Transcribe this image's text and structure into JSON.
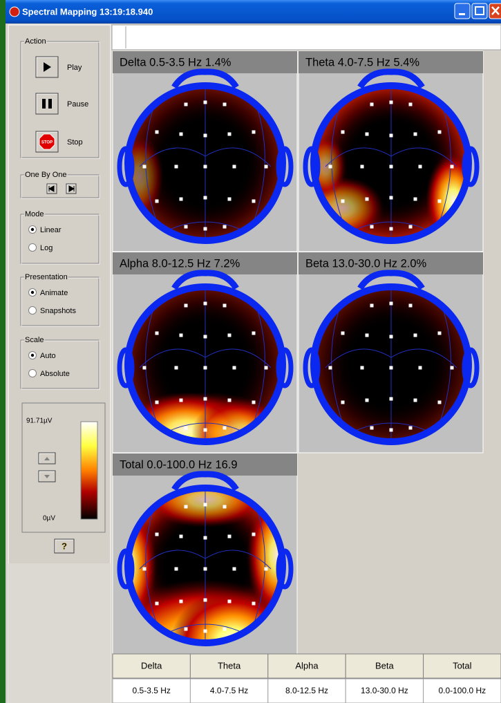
{
  "window": {
    "title": "Spectral Mapping 13:19:18.940"
  },
  "sidebar": {
    "action": {
      "label": "Action",
      "buttons": [
        "Play",
        "Pause",
        "Stop"
      ],
      "stop_icon": "STOP"
    },
    "one_by_one": {
      "label": "One By One"
    },
    "mode": {
      "label": "Mode",
      "options": [
        "Linear",
        "Log"
      ],
      "selected": 0
    },
    "presentation": {
      "label": "Presentation",
      "options": [
        "Animate",
        "Snapshots"
      ],
      "selected": 0
    },
    "scale": {
      "label": "Scale",
      "options": [
        "Auto",
        "Absolute"
      ],
      "selected": 0
    },
    "colorbar": {
      "max_label": "91.71µV",
      "min_label": "0µV"
    },
    "help": "?"
  },
  "maps": [
    {
      "title": "Delta  0.5-3.5 Hz  1.4%"
    },
    {
      "title": "Theta  4.0-7.5 Hz  5.4%"
    },
    {
      "title": "Alpha  8.0-12.5 Hz  7.2%"
    },
    {
      "title": "Beta  13.0-30.0 Hz  2.0%"
    },
    {
      "title": "Total  0.0-100.0 Hz  16.9"
    }
  ],
  "table": {
    "headers": [
      "Delta",
      "Theta",
      "Alpha",
      "Beta",
      "Total"
    ],
    "rows": [
      [
        "0.5-3.5 Hz",
        "4.0-7.5 Hz",
        "8.0-12.5 Hz",
        "13.0-30.0 Hz",
        "0.0-100.0 Hz"
      ]
    ]
  }
}
